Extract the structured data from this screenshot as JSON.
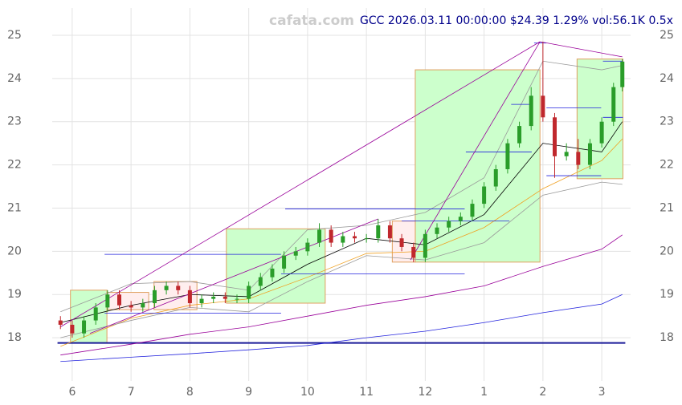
{
  "chart_data": {
    "type": "candlestick",
    "title": "GCC 2026.03.11 00:00:00 $24.39 1.29% vol:56.1K 0.5x",
    "watermark": "cafata.com",
    "xlim": [
      -0.34,
      9.49
    ],
    "ylim": [
      17.0,
      25.63
    ],
    "xticks": [
      {
        "value": 0,
        "label": "6"
      },
      {
        "value": 1,
        "label": "7"
      },
      {
        "value": 2,
        "label": "8"
      },
      {
        "value": 3,
        "label": "9"
      },
      {
        "value": 4,
        "label": "10"
      },
      {
        "value": 5,
        "label": "11"
      },
      {
        "value": 6,
        "label": "12"
      },
      {
        "value": 7,
        "label": "1"
      },
      {
        "value": 8,
        "label": "2"
      },
      {
        "value": 9,
        "label": "3"
      }
    ],
    "yticks": [
      18,
      19,
      20,
      21,
      22,
      23,
      24,
      25
    ],
    "grid": true,
    "up_color": "#2a9d2a",
    "down_color": "#c0282d",
    "x": [
      -0.2,
      0,
      0.2,
      0.4,
      0.6,
      0.8,
      1.0,
      1.2,
      1.4,
      1.6,
      1.8,
      2.0,
      2.2,
      2.4,
      2.6,
      2.8,
      3.0,
      3.2,
      3.4,
      3.6,
      3.8,
      4.0,
      4.2,
      4.4,
      4.6,
      4.8,
      5.0,
      5.2,
      5.4,
      5.6,
      5.8,
      6.0,
      6.2,
      6.4,
      6.6,
      6.8,
      7.0,
      7.2,
      7.4,
      7.6,
      7.8,
      8.0,
      8.2,
      8.4,
      8.6,
      8.8,
      9.0,
      9.2,
      9.35
    ],
    "open": [
      18.4,
      18.3,
      18.1,
      18.4,
      18.7,
      19.0,
      18.75,
      18.7,
      18.8,
      19.1,
      19.2,
      19.1,
      18.8,
      18.9,
      18.95,
      18.9,
      18.9,
      19.2,
      19.4,
      19.6,
      19.9,
      20.0,
      20.2,
      20.5,
      20.2,
      20.35,
      20.3,
      20.3,
      20.6,
      20.3,
      20.1,
      19.85,
      20.4,
      20.55,
      20.7,
      20.8,
      21.1,
      21.5,
      21.9,
      22.5,
      22.9,
      23.6,
      23.1,
      22.2,
      22.3,
      22.0,
      22.5,
      23.0,
      23.8
    ],
    "high": [
      18.5,
      18.4,
      18.5,
      18.8,
      19.1,
      19.1,
      18.85,
      18.9,
      19.2,
      19.3,
      19.3,
      19.2,
      19.0,
      19.05,
      19.05,
      19.0,
      19.3,
      19.5,
      19.7,
      20.0,
      20.1,
      20.3,
      20.65,
      20.6,
      20.45,
      20.45,
      20.4,
      20.75,
      20.7,
      20.4,
      20.2,
      20.5,
      20.65,
      20.8,
      20.9,
      21.2,
      21.6,
      22.0,
      22.6,
      23.0,
      23.8,
      24.85,
      23.2,
      22.5,
      22.6,
      22.6,
      23.1,
      23.9,
      24.45
    ],
    "low": [
      18.2,
      18.0,
      18.0,
      18.3,
      18.6,
      18.65,
      18.6,
      18.6,
      18.7,
      19.0,
      19.0,
      18.7,
      18.7,
      18.8,
      18.8,
      18.8,
      18.8,
      19.1,
      19.3,
      19.5,
      19.8,
      19.9,
      20.1,
      20.1,
      20.1,
      20.2,
      20.2,
      20.2,
      20.2,
      20.0,
      19.75,
      19.75,
      20.3,
      20.45,
      20.6,
      20.7,
      21.0,
      21.4,
      21.8,
      22.4,
      22.8,
      23.0,
      21.7,
      22.1,
      21.9,
      21.9,
      22.4,
      22.9,
      23.7
    ],
    "close": [
      18.3,
      18.1,
      18.4,
      18.7,
      19.0,
      18.75,
      18.7,
      18.8,
      19.1,
      19.2,
      19.1,
      18.8,
      18.9,
      18.95,
      18.9,
      18.9,
      19.2,
      19.4,
      19.6,
      19.9,
      20.0,
      20.2,
      20.5,
      20.2,
      20.35,
      20.3,
      20.3,
      20.6,
      20.3,
      20.1,
      19.85,
      20.4,
      20.55,
      20.7,
      20.8,
      21.1,
      21.5,
      21.9,
      22.5,
      22.9,
      23.6,
      23.1,
      22.2,
      22.3,
      22.0,
      22.5,
      23.0,
      23.8,
      24.39
    ],
    "line_x": [
      -0.2,
      1,
      2,
      3,
      4,
      5,
      6,
      7,
      8,
      9,
      9.35
    ],
    "lines": [
      {
        "color": "#2222dd",
        "values": [
          17.45,
          17.55,
          17.63,
          17.72,
          17.82,
          18.0,
          18.15,
          18.35,
          18.58,
          18.78,
          19.0
        ]
      },
      {
        "color": "#990099",
        "values": [
          17.6,
          17.85,
          18.08,
          18.25,
          18.5,
          18.75,
          18.95,
          19.2,
          19.65,
          20.05,
          20.38
        ]
      },
      {
        "color": "#f0a020",
        "values": [
          17.8,
          18.45,
          18.75,
          18.9,
          19.4,
          19.95,
          20.0,
          20.55,
          21.45,
          22.1,
          22.6
        ]
      },
      {
        "color": "#999999",
        "values": [
          18.6,
          19.25,
          19.3,
          19.1,
          20.5,
          20.6,
          20.9,
          21.7,
          24.4,
          24.2,
          24.3
        ]
      },
      {
        "color": "#999999",
        "values": [
          18.0,
          18.4,
          18.7,
          18.6,
          19.3,
          19.9,
          19.8,
          20.2,
          21.3,
          21.6,
          21.55
        ]
      },
      {
        "color": "#000000",
        "values": [
          18.35,
          18.75,
          19.0,
          18.95,
          19.7,
          20.3,
          20.15,
          20.85,
          22.5,
          22.3,
          23.0
        ]
      }
    ],
    "trend_color": "#990099",
    "trendlines": [
      {
        "x0": -0.2,
        "y0": 18.25,
        "x1": 7.95,
        "y1": 24.85
      },
      {
        "x0": 7.95,
        "y0": 24.85,
        "x1": 9.35,
        "y1": 24.5
      },
      {
        "x0": 5.75,
        "y0": 19.8,
        "x1": 7.95,
        "y1": 24.85
      },
      {
        "x0": 0.3,
        "y0": 18.1,
        "x1": 5.2,
        "y1": 20.75
      }
    ],
    "level_color": "#2222dd",
    "levels": [
      {
        "x0": 0.55,
        "x1": 3.55,
        "y": 19.93
      },
      {
        "x0": 3.62,
        "x1": 6.67,
        "y": 20.98
      },
      {
        "x0": 3.55,
        "x1": 6.67,
        "y": 19.48
      },
      {
        "x0": 0.55,
        "x1": 3.55,
        "y": 18.57
      },
      {
        "x0": 6.69,
        "x1": 7.81,
        "y": 22.3
      },
      {
        "x0": 5.6,
        "x1": 7.43,
        "y": 20.7
      },
      {
        "x0": 7.46,
        "x1": 7.81,
        "y": 23.4
      },
      {
        "x0": 8.06,
        "x1": 8.99,
        "y": 23.32
      },
      {
        "x0": 8.06,
        "x1": 8.99,
        "y": 21.75
      },
      {
        "x0": 9.02,
        "x1": 9.36,
        "y": 24.4
      },
      {
        "x0": 9.02,
        "x1": 9.36,
        "y": 23.1
      },
      {
        "x0": 7.85,
        "x1": 8.06,
        "y": 24.82
      }
    ],
    "baseline": {
      "x0": -0.25,
      "x1": 9.4,
      "y": 17.88,
      "color": "#1a1a99"
    },
    "boxes": [
      {
        "x0": -0.03,
        "x1": 0.59,
        "y0": 17.88,
        "y1": 19.1,
        "color": "#ccffcc"
      },
      {
        "x0": 2.62,
        "x1": 4.3,
        "y0": 18.8,
        "y1": 20.52,
        "color": "#ccffcc"
      },
      {
        "x0": 5.83,
        "x1": 7.95,
        "y0": 19.75,
        "y1": 24.2,
        "color": "#ccffcc"
      },
      {
        "x0": 8.58,
        "x1": 9.36,
        "y0": 21.68,
        "y1": 24.45,
        "color": "#ccffcc"
      },
      {
        "x0": 0.59,
        "x1": 1.3,
        "y0": 18.65,
        "y1": 19.05,
        "color": "#ffeeee"
      },
      {
        "x0": 1.39,
        "x1": 2.12,
        "y0": 18.65,
        "y1": 19.3,
        "color": "#ffeeee"
      },
      {
        "x0": 5.44,
        "x1": 5.83,
        "y0": 19.75,
        "y1": 20.7,
        "color": "#ffeeee"
      }
    ]
  }
}
